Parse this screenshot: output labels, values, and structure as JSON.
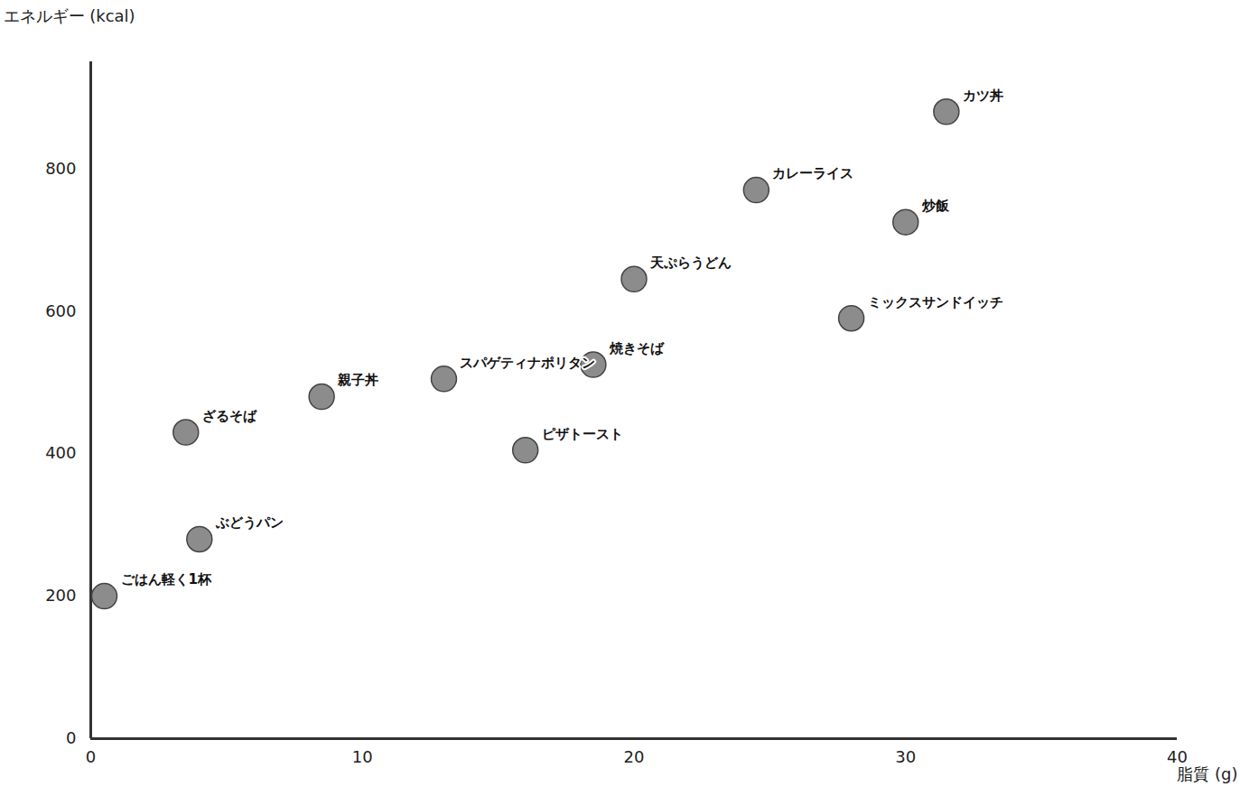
{
  "chart_data": {
    "type": "scatter",
    "x_label": "脂質 (g)",
    "y_label": "エネルギー (kcal)",
    "categories": [
      "ごはん軽く1杯",
      "ぶどうパン",
      "ざるそば",
      "親子丼",
      "スパゲティナポリタン",
      "ピザトースト",
      "焼きそば",
      "天ぷらうどん",
      "カレーライス",
      "ミックスサンドイッチ",
      "炒飯",
      "カツ丼"
    ],
    "x": [
      0.5,
      4,
      3.5,
      8.5,
      13,
      16,
      18.5,
      20,
      24.5,
      28,
      30,
      31.5
    ],
    "values": [
      200,
      280,
      430,
      480,
      505,
      405,
      525,
      645,
      770,
      590,
      725,
      880
    ],
    "color": "#8c8c8c",
    "marker": "circle",
    "xlim": [
      0,
      40
    ],
    "xticks": [
      0,
      10,
      20,
      30,
      40
    ],
    "ylim": [
      0,
      950
    ],
    "yticks": [
      0,
      200,
      400,
      600,
      800
    ],
    "grid": false
  }
}
